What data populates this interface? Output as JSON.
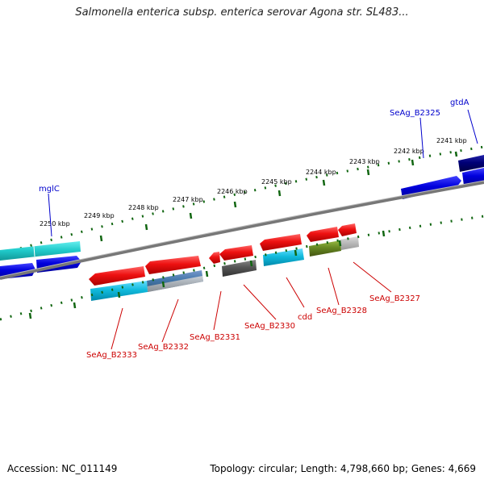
{
  "title": "Salmonella enterica subsp. enterica serovar Agona str. SL483...",
  "footer": {
    "accession": "Accession: NC_011149",
    "topology": "Topology: circular; Length: 4,798,660 bp; Genes: 4,669"
  },
  "scale_labels": [
    "2241 kbp",
    "2242 kbp",
    "2243 kbp",
    "2244 kbp",
    "2245 kbp",
    "2246 kbp",
    "2247 kbp",
    "2248 kbp",
    "2249 kbp",
    "2250 kbp"
  ],
  "gene_labels_top": [
    "gtdA",
    "SeAg_B2325",
    "mglC"
  ],
  "gene_labels_bottom": [
    "SeAg_B2327",
    "SeAg_B2328",
    "cdd",
    "SeAg_B2330",
    "SeAg_B2331",
    "SeAg_B2332",
    "SeAg_B2333"
  ],
  "colors": {
    "forward_gene": "#0000dd",
    "reverse_gene": "#ee1111",
    "cyan_gene": "#11bbdd",
    "teal_gene": "#22cccc",
    "navy_gene": "#000077",
    "olive_gene": "#668822",
    "grey_gene": "#555555",
    "lightgrey_gene": "#bbbbbb",
    "steel_gene": "#4477aa",
    "tick": "#116611",
    "backbone": "#777777",
    "label_blue": "#0000cc",
    "label_red": "#cc0000"
  }
}
